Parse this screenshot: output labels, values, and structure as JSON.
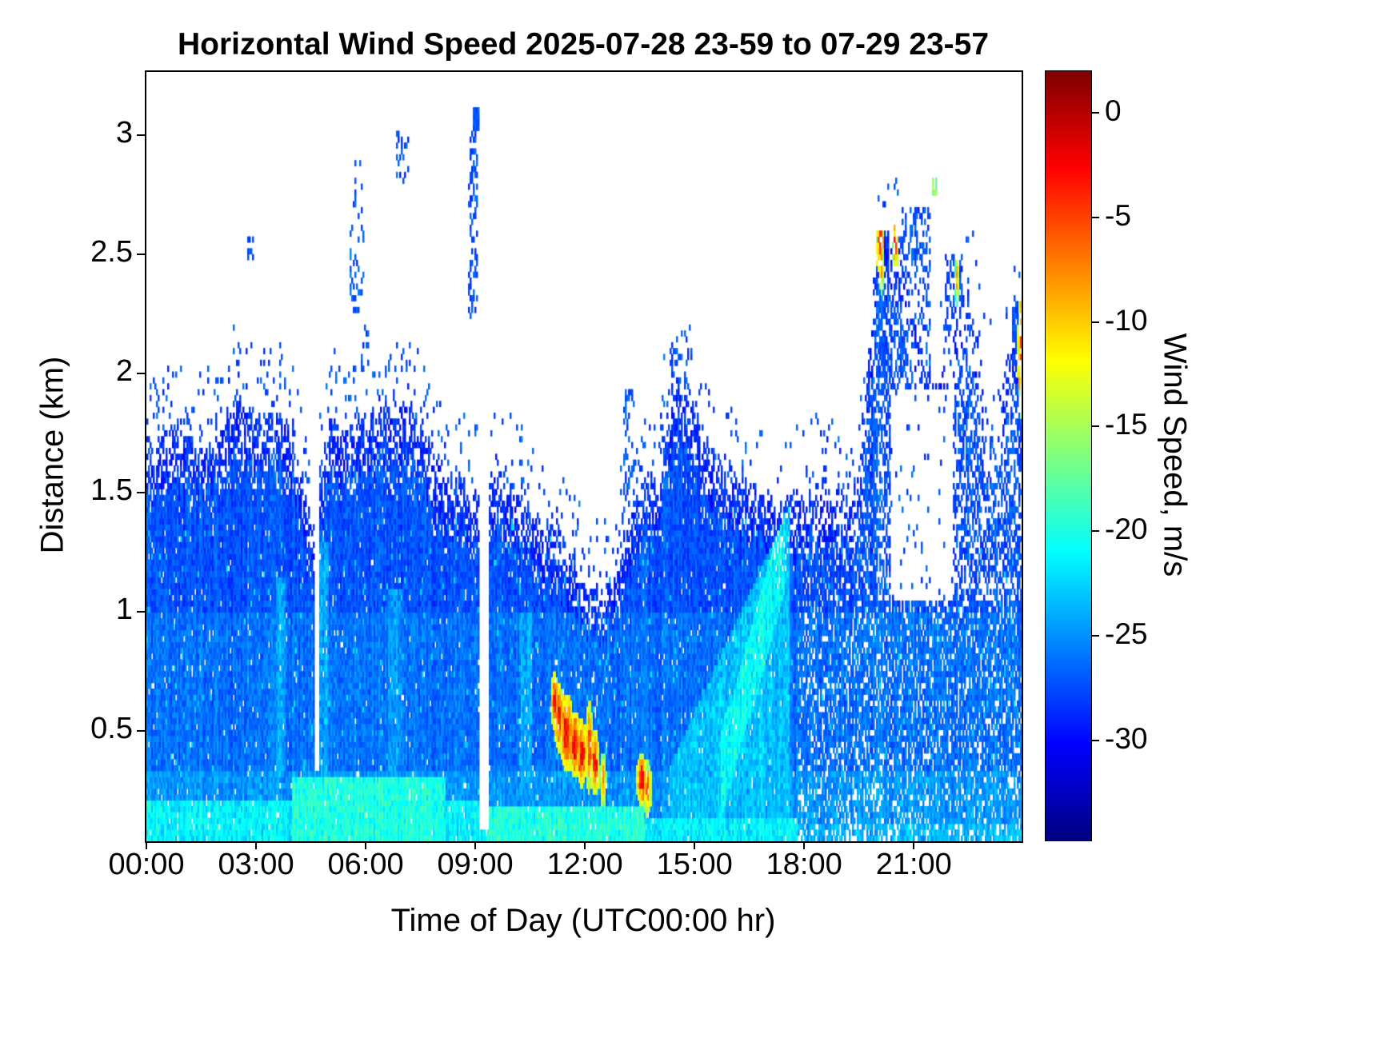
{
  "figure": {
    "title": "Horizontal Wind Speed 2025-07-28 23-59 to 07-29 23-57",
    "xlabel": "Time of Day (UTC00:00 hr)",
    "ylabel": "Distance (km)",
    "colorbar_label": "Wind Speed, m/s",
    "background_color": "#ffffff",
    "axis_color": "#000000",
    "no_data_color": "#ffffff"
  },
  "chart_data": {
    "type": "heatmap",
    "title": "Horizontal Wind Speed 2025-07-28 23-59 to 07-29 23-57",
    "xlabel": "Time of Day (UTC00:00 hr)",
    "ylabel": "Distance (km)",
    "x_tick_labels": [
      "00:00",
      "03:00",
      "06:00",
      "09:00",
      "12:00",
      "15:00",
      "18:00",
      "21:00"
    ],
    "x_tick_hours": [
      0,
      3,
      6,
      9,
      12,
      15,
      18,
      21
    ],
    "x_range_hours": [
      0,
      23.95
    ],
    "y_tick_labels": [
      "0.5",
      "1",
      "1.5",
      "2",
      "2.5",
      "3"
    ],
    "y_tick_values": [
      0.5,
      1,
      1.5,
      2,
      2.5,
      3
    ],
    "y_range_km": [
      0.04,
      3.27
    ],
    "grid": false,
    "legend": false,
    "colorbar": {
      "label": "Wind Speed, m/s",
      "tick_labels": [
        "0",
        "-5",
        "-10",
        "-15",
        "-20",
        "-25",
        "-30"
      ],
      "tick_values": [
        0,
        -5,
        -10,
        -15,
        -20,
        -25,
        -30
      ],
      "vmin": -34.8,
      "vmax": 2.0,
      "colormap": "jet",
      "colormap_stops": [
        "#00008f",
        "#0000ff",
        "#00ffff",
        "#80ff80",
        "#ffff00",
        "#ff8000",
        "#ff0000",
        "#800000"
      ]
    },
    "boundary_layer_top_step_hr": 0.5,
    "boundary_layer_top_km": [
      1.7,
      1.76,
      1.8,
      1.72,
      1.76,
      1.95,
      1.8,
      1.85,
      1.8,
      1.35,
      1.8,
      1.76,
      1.82,
      1.86,
      1.9,
      1.8,
      1.62,
      1.55,
      1.5,
      1.6,
      1.55,
      1.45,
      1.35,
      1.28,
      1.15,
      1.1,
      1.3,
      1.48,
      1.62,
      2.0,
      1.88,
      1.65,
      1.6,
      1.55,
      1.5,
      1.45,
      1.5,
      1.55,
      1.5,
      1.55,
      2.55,
      2.6,
      2.3,
      1.9,
      2.2,
      2.4,
      1.95,
      2.05,
      2.25
    ],
    "base_profile": {
      "surface_value": -24.8,
      "lower_value": -26.2,
      "upper_value": -27.3,
      "top_edge_darkening": -1.4
    },
    "bright_regions": [
      {
        "shape": "rect",
        "t0": 0,
        "t1": 4.0,
        "y0": 0,
        "y1": 0.22,
        "value": -21.3
      },
      {
        "shape": "rect",
        "t0": 4.0,
        "t1": 8.2,
        "y0": 0,
        "y1": 0.3,
        "value": -20.0
      },
      {
        "shape": "rect",
        "t0": 8.2,
        "t1": 9.3,
        "y0": 0,
        "y1": 0.22,
        "value": -21.5
      },
      {
        "shape": "rect",
        "t0": 9.3,
        "t1": 13.6,
        "y0": 0,
        "y1": 0.18,
        "value": -19.8
      },
      {
        "shape": "rect",
        "t0": 13.6,
        "t1": 17.8,
        "y0": 0,
        "y1": 0.15,
        "value": -21.5
      },
      {
        "shape": "rect",
        "t0": 17.8,
        "t1": 24.0,
        "y0": 0,
        "y1": 0.12,
        "value": -23.5
      },
      {
        "shape": "rect",
        "t0": 3.55,
        "t1": 3.8,
        "y0": 0.3,
        "y1": 1.15,
        "value": -24.3
      },
      {
        "shape": "rect",
        "t0": 4.75,
        "t1": 5.0,
        "y0": 0.3,
        "y1": 1.3,
        "value": -24.3
      },
      {
        "shape": "rect",
        "t0": 6.6,
        "t1": 7.0,
        "y0": 0.3,
        "y1": 1.1,
        "value": -24.6
      },
      {
        "shape": "rect",
        "t0": 10.2,
        "t1": 10.55,
        "y0": 0.25,
        "y1": 1.0,
        "value": -24.3
      },
      {
        "shape": "wedge",
        "t0": 14.3,
        "t1": 17.6,
        "y0": 0.15,
        "y1_start": 0.35,
        "y1_end": 1.45,
        "value": -23.2
      },
      {
        "shape": "diag",
        "t0": 15.7,
        "t1": 17.45,
        "yc_start": 0.3,
        "yc_end": 1.25,
        "halfwidth": 0.18,
        "value": -20.8
      }
    ],
    "hotspots": [
      {
        "t": 11.18,
        "y": 0.63,
        "rt": 0.05,
        "ry": 0.05,
        "v": -4
      },
      {
        "t": 11.3,
        "y": 0.56,
        "rt": 0.06,
        "ry": 0.06,
        "v": -3.5
      },
      {
        "t": 11.5,
        "y": 0.5,
        "rt": 0.08,
        "ry": 0.07,
        "v": -3
      },
      {
        "t": 11.72,
        "y": 0.45,
        "rt": 0.08,
        "ry": 0.06,
        "v": -3.5
      },
      {
        "t": 11.92,
        "y": 0.41,
        "rt": 0.06,
        "ry": 0.06,
        "v": -3
      },
      {
        "t": 12.12,
        "y": 0.44,
        "rt": 0.05,
        "ry": 0.08,
        "v": -5
      },
      {
        "t": 12.28,
        "y": 0.37,
        "rt": 0.05,
        "ry": 0.06,
        "v": -4
      },
      {
        "t": 12.5,
        "y": 0.3,
        "rt": 0.04,
        "ry": 0.05,
        "v": -7
      },
      {
        "t": 13.55,
        "y": 0.3,
        "rt": 0.06,
        "ry": 0.05,
        "v": -4
      },
      {
        "t": 13.72,
        "y": 0.26,
        "rt": 0.05,
        "ry": 0.05,
        "v": -6
      },
      {
        "t": 20.08,
        "y": 2.56,
        "rt": 0.05,
        "ry": 0.06,
        "v": -5
      },
      {
        "t": 20.12,
        "y": 2.44,
        "rt": 0.03,
        "ry": 0.04,
        "v": -8
      },
      {
        "t": 20.5,
        "y": 2.56,
        "rt": 0.04,
        "ry": 0.05,
        "v": -5
      },
      {
        "t": 22.18,
        "y": 2.4,
        "rt": 0.03,
        "ry": 0.05,
        "v": -9
      },
      {
        "t": 23.93,
        "y": 2.1,
        "rt": 0.04,
        "ry": 0.12,
        "v": -5
      },
      {
        "t": 23.97,
        "y": 1.98,
        "rt": 0.03,
        "ry": 0.05,
        "v": -7
      }
    ],
    "speckle_clusters": [
      {
        "t0": 0.08,
        "t1": 0.5,
        "y0": 1.72,
        "y1": 1.95,
        "p": 0.2
      },
      {
        "t0": 1.9,
        "t1": 2.1,
        "y0": 1.78,
        "y1": 2.0,
        "p": 0.2
      },
      {
        "t0": 2.78,
        "t1": 2.95,
        "y0": 2.48,
        "y1": 2.58,
        "p": 0.5
      },
      {
        "t0": 5.55,
        "t1": 5.95,
        "y0": 2.25,
        "y1": 2.95,
        "p": 0.22
      },
      {
        "t0": 5.85,
        "t1": 6.1,
        "y0": 2.0,
        "y1": 2.2,
        "p": 0.25
      },
      {
        "t0": 6.85,
        "t1": 7.2,
        "y0": 2.8,
        "y1": 3.02,
        "p": 0.25
      },
      {
        "t0": 8.8,
        "t1": 9.08,
        "y0": 2.2,
        "y1": 3.05,
        "p": 0.3
      },
      {
        "t0": 8.95,
        "t1": 9.1,
        "y0": 3.02,
        "y1": 3.12,
        "p": 0.85
      },
      {
        "t0": 13.05,
        "t1": 13.35,
        "y0": 1.5,
        "y1": 1.95,
        "p": 0.3
      },
      {
        "t0": 14.35,
        "t1": 14.85,
        "y0": 1.85,
        "y1": 2.18,
        "p": 0.3
      },
      {
        "t0": 19.95,
        "t1": 20.3,
        "y0": 1.9,
        "y1": 2.6,
        "p": 0.75
      },
      {
        "t0": 20.45,
        "t1": 20.65,
        "y0": 1.95,
        "y1": 2.58,
        "p": 0.6
      },
      {
        "t0": 20.65,
        "t1": 21.45,
        "y0": 1.95,
        "y1": 2.7,
        "p": 0.35
      },
      {
        "t0": 21.5,
        "t1": 21.62,
        "y0": 2.72,
        "y1": 2.82,
        "p": 0.7,
        "v": -16
      },
      {
        "t0": 21.85,
        "t1": 22.35,
        "y0": 2.15,
        "y1": 2.5,
        "p": 0.45
      },
      {
        "t0": 22.12,
        "t1": 22.28,
        "y0": 2.3,
        "y1": 2.47,
        "p": 0.8
      },
      {
        "t0": 23.7,
        "t1": 24.0,
        "y0": 1.95,
        "y1": 2.3,
        "p": 0.7
      }
    ],
    "sparse_regions": [
      {
        "t0": 17.8,
        "t1": 20.0,
        "y0": 0,
        "y1": 3.3,
        "mult": 0.8
      },
      {
        "t0": 20.0,
        "t1": 24.0,
        "y0": 0,
        "y1": 1.05,
        "mult": 0.82
      },
      {
        "t0": 20.0,
        "t1": 24.0,
        "y0": 1.05,
        "y1": 3.3,
        "mult": 0.5
      },
      {
        "t0": 20.35,
        "t1": 22.05,
        "y0": 1.05,
        "y1": 1.95,
        "mult": 0.08
      },
      {
        "t0": 22.9,
        "t1": 23.45,
        "y0": 1.55,
        "y1": 2.2,
        "mult": 0.45
      }
    ],
    "data_gaps": [
      {
        "t0": 9.12,
        "t1": 9.38,
        "y0": 0.1,
        "y1": 3.3
      },
      {
        "t0": 4.6,
        "t1": 4.73,
        "y0": 0.33,
        "y1": 3.3
      }
    ]
  }
}
